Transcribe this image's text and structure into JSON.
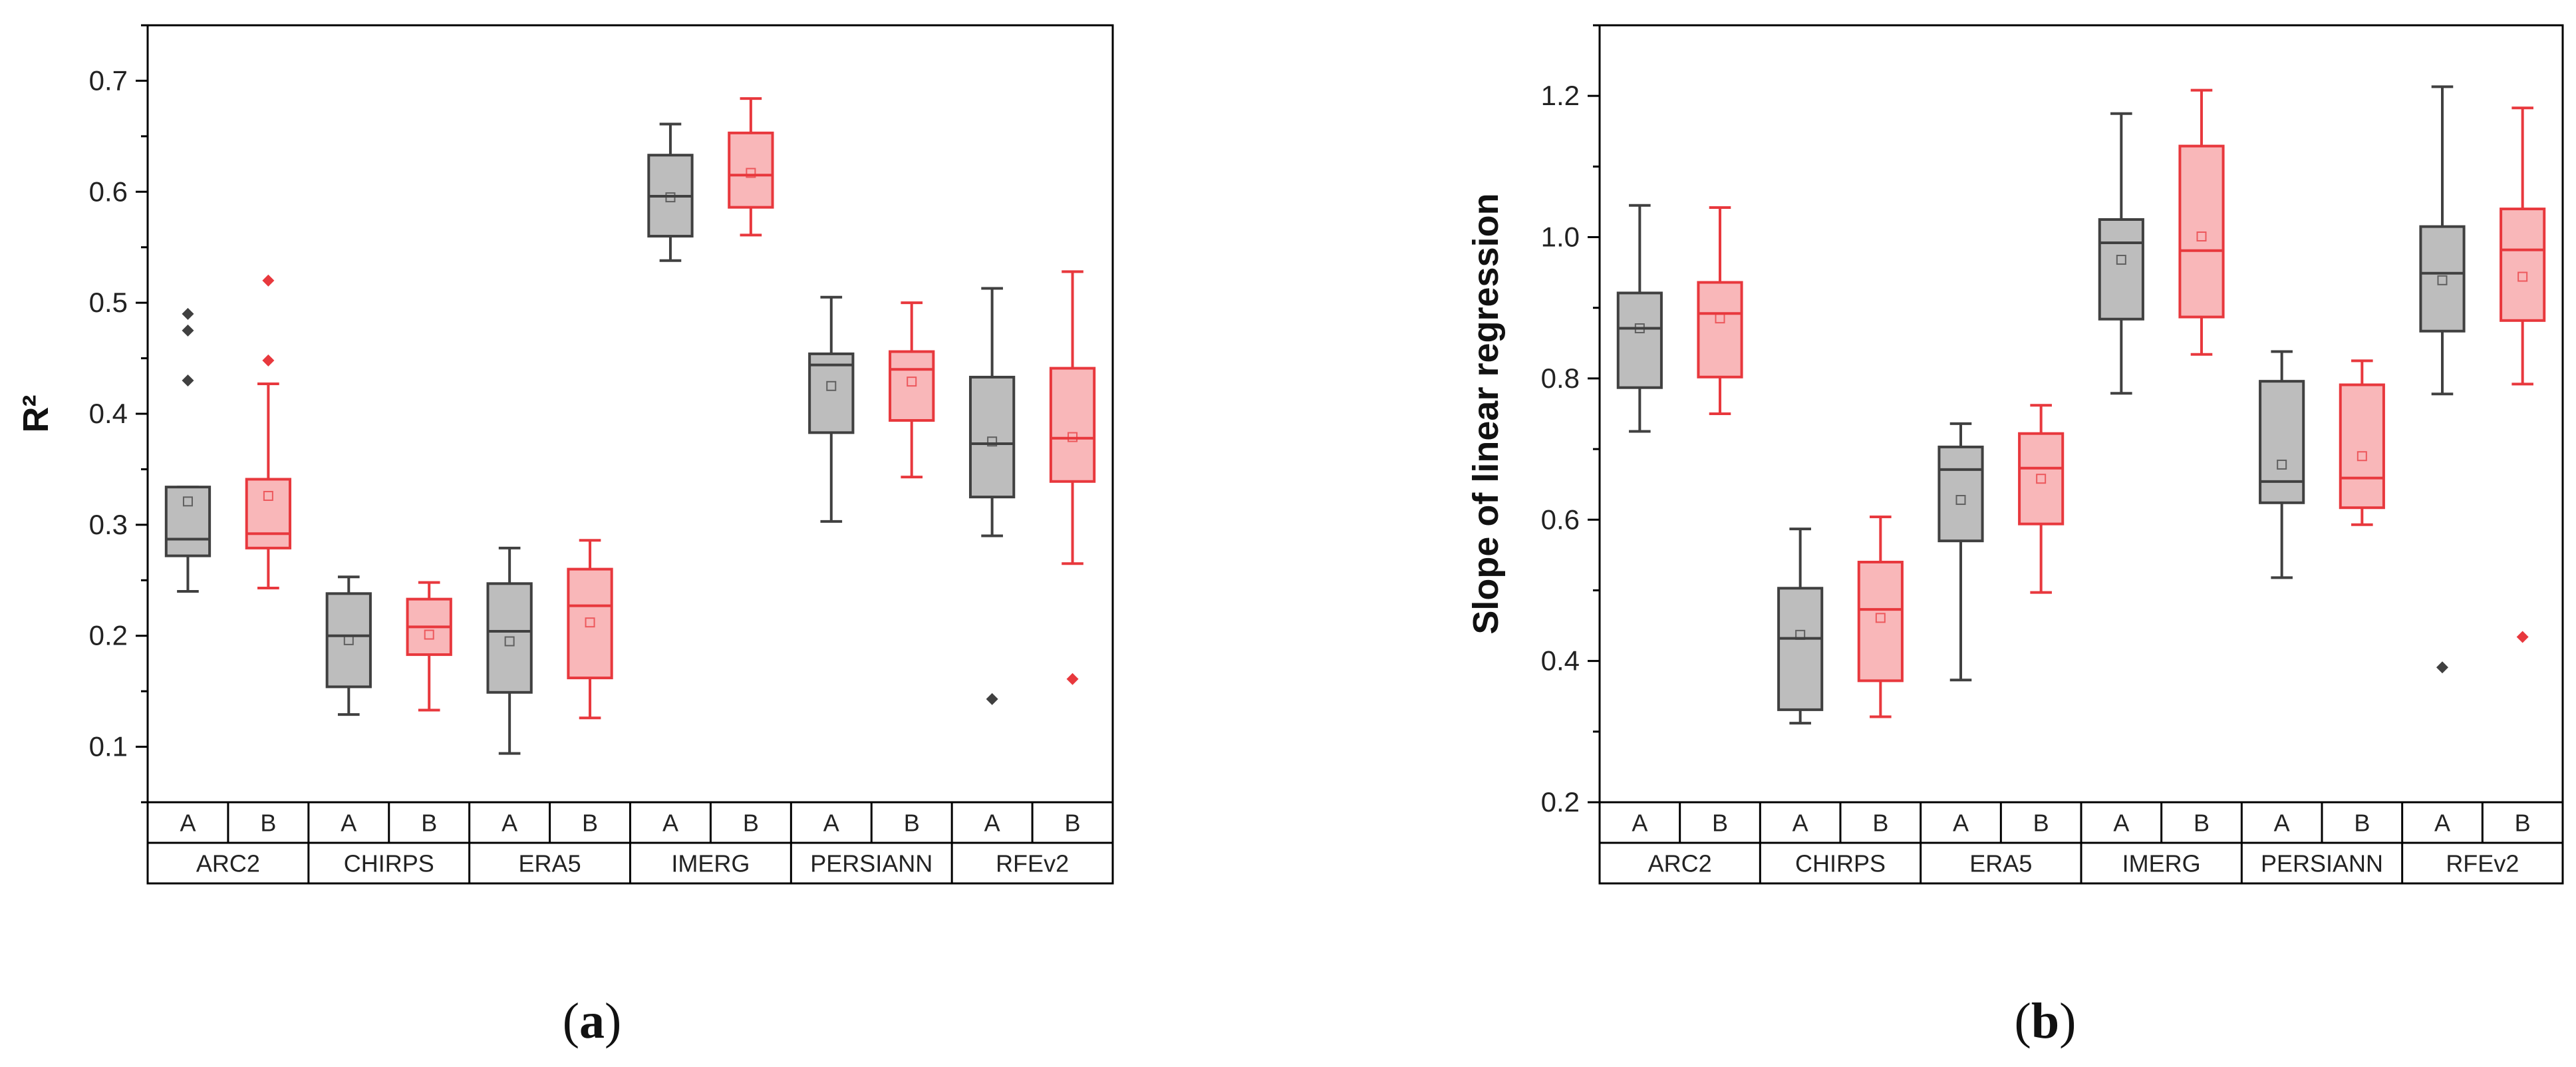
{
  "colors": {
    "A": "#404040",
    "A_fill": "#bdbdbd",
    "B": "#e8383d",
    "B_fill": "#f9b7b9"
  },
  "chart_data": [
    {
      "type": "box",
      "panel_label": "a",
      "ylabel": "R²",
      "ylim": [
        0.05,
        0.75
      ],
      "yticks": [
        "0.1",
        "0.2",
        "0.3",
        "0.4",
        "0.5",
        "0.6",
        "0.7"
      ],
      "groups": [
        "ARC2",
        "CHIRPS",
        "ERA5",
        "IMERG",
        "PERSIANN",
        "RFEv2"
      ],
      "subcategories": [
        "A",
        "B"
      ],
      "boxes": [
        {
          "group": "ARC2",
          "sub": "A",
          "min": 0.24,
          "q1": 0.272,
          "median": 0.287,
          "q3": 0.334,
          "max": 0.334,
          "mean": 0.321,
          "outliers": [
            0.43,
            0.475,
            0.49
          ]
        },
        {
          "group": "ARC2",
          "sub": "B",
          "min": 0.243,
          "q1": 0.279,
          "median": 0.292,
          "q3": 0.341,
          "max": 0.427,
          "mean": 0.326,
          "outliers": [
            0.448,
            0.52
          ]
        },
        {
          "group": "CHIRPS",
          "sub": "A",
          "min": 0.129,
          "q1": 0.154,
          "median": 0.2,
          "q3": 0.238,
          "max": 0.253,
          "mean": 0.196,
          "outliers": []
        },
        {
          "group": "CHIRPS",
          "sub": "B",
          "min": 0.133,
          "q1": 0.183,
          "median": 0.208,
          "q3": 0.233,
          "max": 0.248,
          "mean": 0.201,
          "outliers": []
        },
        {
          "group": "ERA5",
          "sub": "A",
          "min": 0.094,
          "q1": 0.149,
          "median": 0.204,
          "q3": 0.247,
          "max": 0.279,
          "mean": 0.195,
          "outliers": []
        },
        {
          "group": "ERA5",
          "sub": "B",
          "min": 0.126,
          "q1": 0.162,
          "median": 0.227,
          "q3": 0.26,
          "max": 0.286,
          "mean": 0.212,
          "outliers": []
        },
        {
          "group": "IMERG",
          "sub": "A",
          "min": 0.538,
          "q1": 0.56,
          "median": 0.596,
          "q3": 0.633,
          "max": 0.661,
          "mean": 0.595,
          "outliers": []
        },
        {
          "group": "IMERG",
          "sub": "B",
          "min": 0.561,
          "q1": 0.586,
          "median": 0.615,
          "q3": 0.653,
          "max": 0.684,
          "mean": 0.617,
          "outliers": []
        },
        {
          "group": "PERSIANN",
          "sub": "A",
          "min": 0.303,
          "q1": 0.383,
          "median": 0.444,
          "q3": 0.454,
          "max": 0.505,
          "mean": 0.425,
          "outliers": []
        },
        {
          "group": "PERSIANN",
          "sub": "B",
          "min": 0.343,
          "q1": 0.394,
          "median": 0.44,
          "q3": 0.456,
          "max": 0.5,
          "mean": 0.429,
          "outliers": []
        },
        {
          "group": "RFEv2",
          "sub": "A",
          "min": 0.29,
          "q1": 0.325,
          "median": 0.373,
          "q3": 0.433,
          "max": 0.513,
          "mean": 0.375,
          "outliers": [
            0.143
          ]
        },
        {
          "group": "RFEv2",
          "sub": "B",
          "min": 0.265,
          "q1": 0.339,
          "median": 0.378,
          "q3": 0.441,
          "max": 0.528,
          "mean": 0.379,
          "outliers": [
            0.161
          ]
        }
      ]
    },
    {
      "type": "box",
      "panel_label": "b",
      "ylabel": "Slope of linear regression",
      "ylim": [
        0.2,
        1.3
      ],
      "yticks": [
        "0.2",
        "0.4",
        "0.6",
        "0.8",
        "1.0",
        "1.2"
      ],
      "groups": [
        "ARC2",
        "CHIRPS",
        "ERA5",
        "IMERG",
        "PERSIANN",
        "RFEv2"
      ],
      "subcategories": [
        "A",
        "B"
      ],
      "boxes": [
        {
          "group": "ARC2",
          "sub": "A",
          "min": 0.725,
          "q1": 0.787,
          "median": 0.871,
          "q3": 0.921,
          "max": 1.045,
          "mean": 0.871,
          "outliers": []
        },
        {
          "group": "ARC2",
          "sub": "B",
          "min": 0.75,
          "q1": 0.802,
          "median": 0.892,
          "q3": 0.936,
          "max": 1.042,
          "mean": 0.885,
          "outliers": []
        },
        {
          "group": "CHIRPS",
          "sub": "A",
          "min": 0.312,
          "q1": 0.331,
          "median": 0.432,
          "q3": 0.503,
          "max": 0.587,
          "mean": 0.437,
          "outliers": []
        },
        {
          "group": "CHIRPS",
          "sub": "B",
          "min": 0.321,
          "q1": 0.372,
          "median": 0.473,
          "q3": 0.54,
          "max": 0.604,
          "mean": 0.461,
          "outliers": []
        },
        {
          "group": "ERA5",
          "sub": "A",
          "min": 0.373,
          "q1": 0.57,
          "median": 0.671,
          "q3": 0.703,
          "max": 0.736,
          "mean": 0.628,
          "outliers": []
        },
        {
          "group": "ERA5",
          "sub": "B",
          "min": 0.497,
          "q1": 0.594,
          "median": 0.673,
          "q3": 0.722,
          "max": 0.762,
          "mean": 0.658,
          "outliers": []
        },
        {
          "group": "IMERG",
          "sub": "A",
          "min": 0.779,
          "q1": 0.884,
          "median": 0.992,
          "q3": 1.025,
          "max": 1.175,
          "mean": 0.968,
          "outliers": []
        },
        {
          "group": "IMERG",
          "sub": "B",
          "min": 0.834,
          "q1": 0.887,
          "median": 0.981,
          "q3": 1.129,
          "max": 1.208,
          "mean": 1.001,
          "outliers": []
        },
        {
          "group": "PERSIANN",
          "sub": "A",
          "min": 0.518,
          "q1": 0.624,
          "median": 0.654,
          "q3": 0.796,
          "max": 0.838,
          "mean": 0.678,
          "outliers": []
        },
        {
          "group": "PERSIANN",
          "sub": "B",
          "min": 0.593,
          "q1": 0.617,
          "median": 0.659,
          "q3": 0.791,
          "max": 0.825,
          "mean": 0.69,
          "outliers": []
        },
        {
          "group": "RFEv2",
          "sub": "A",
          "min": 0.778,
          "q1": 0.867,
          "median": 0.949,
          "q3": 1.015,
          "max": 1.213,
          "mean": 0.939,
          "outliers": [
            0.391
          ]
        },
        {
          "group": "RFEv2",
          "sub": "B",
          "min": 0.792,
          "q1": 0.882,
          "median": 0.982,
          "q3": 1.04,
          "max": 1.183,
          "mean": 0.944,
          "outliers": [
            0.434
          ]
        }
      ]
    }
  ]
}
